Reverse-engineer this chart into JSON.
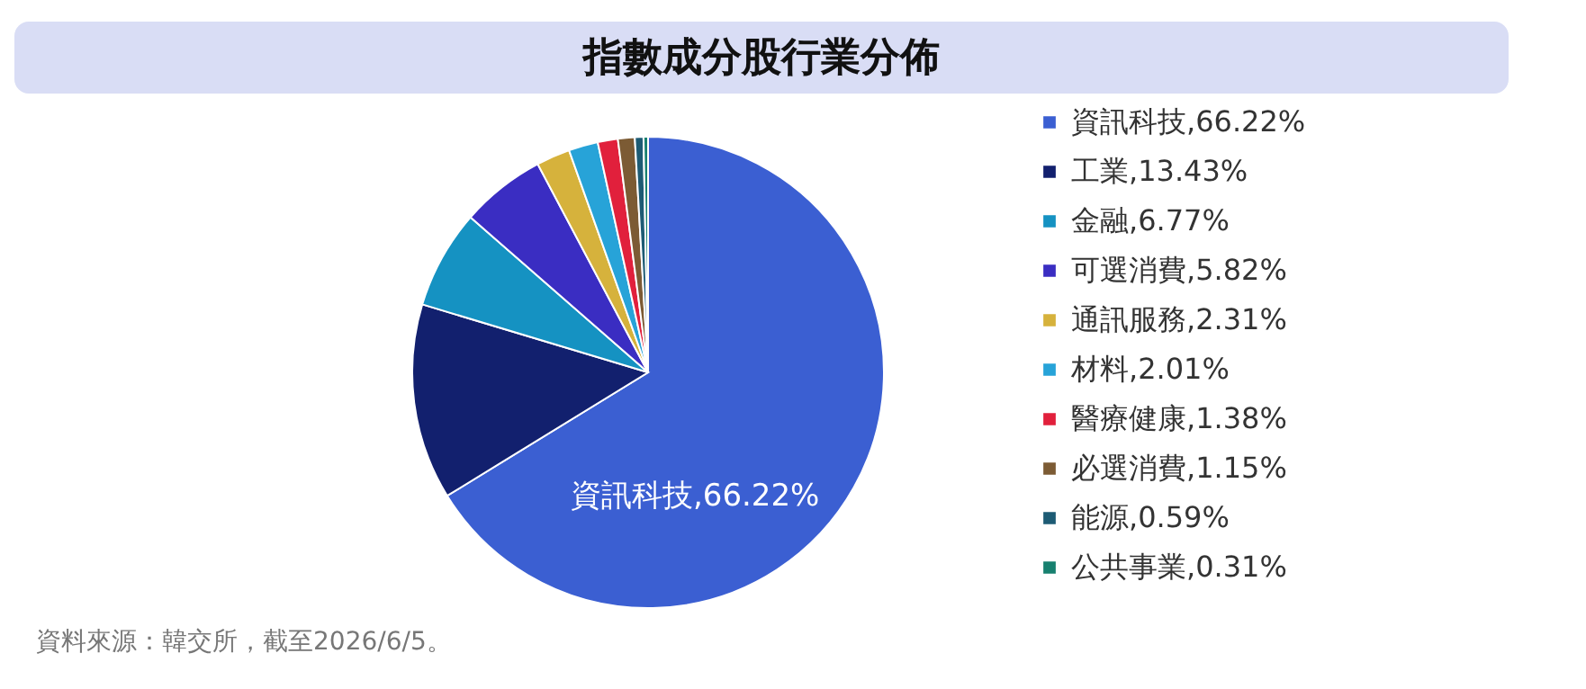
{
  "chart_data": {
    "type": "pie",
    "title": "指數成分股行業分佈",
    "categories": [
      "資訊科技,66.22%",
      "工業,13.43%",
      "金融,6.77%",
      "可選消費,5.82%",
      "通訊服務,2.31%",
      "材料,2.01%",
      "醫療健康,1.38%",
      "必選消費,1.15%",
      "能源,0.59%",
      "公共事業,0.31%"
    ],
    "values": [
      66.22,
      13.43,
      6.77,
      5.82,
      2.31,
      2.01,
      1.38,
      1.15,
      0.59,
      0.31
    ],
    "colors": [
      "#3b5fd2",
      "#12206e",
      "#1592c2",
      "#3a2dc2",
      "#d6b23c",
      "#27a3d8",
      "#e1203c",
      "#7c5b34",
      "#1d5b74",
      "#17806f"
    ],
    "value_labels": [
      "資訊科技,66.22%",
      null,
      null,
      null,
      null,
      null,
      null,
      null,
      null,
      null
    ],
    "legend": "right",
    "annotations": [
      "資料來源：韓交所，截至2026/6/5。"
    ]
  }
}
